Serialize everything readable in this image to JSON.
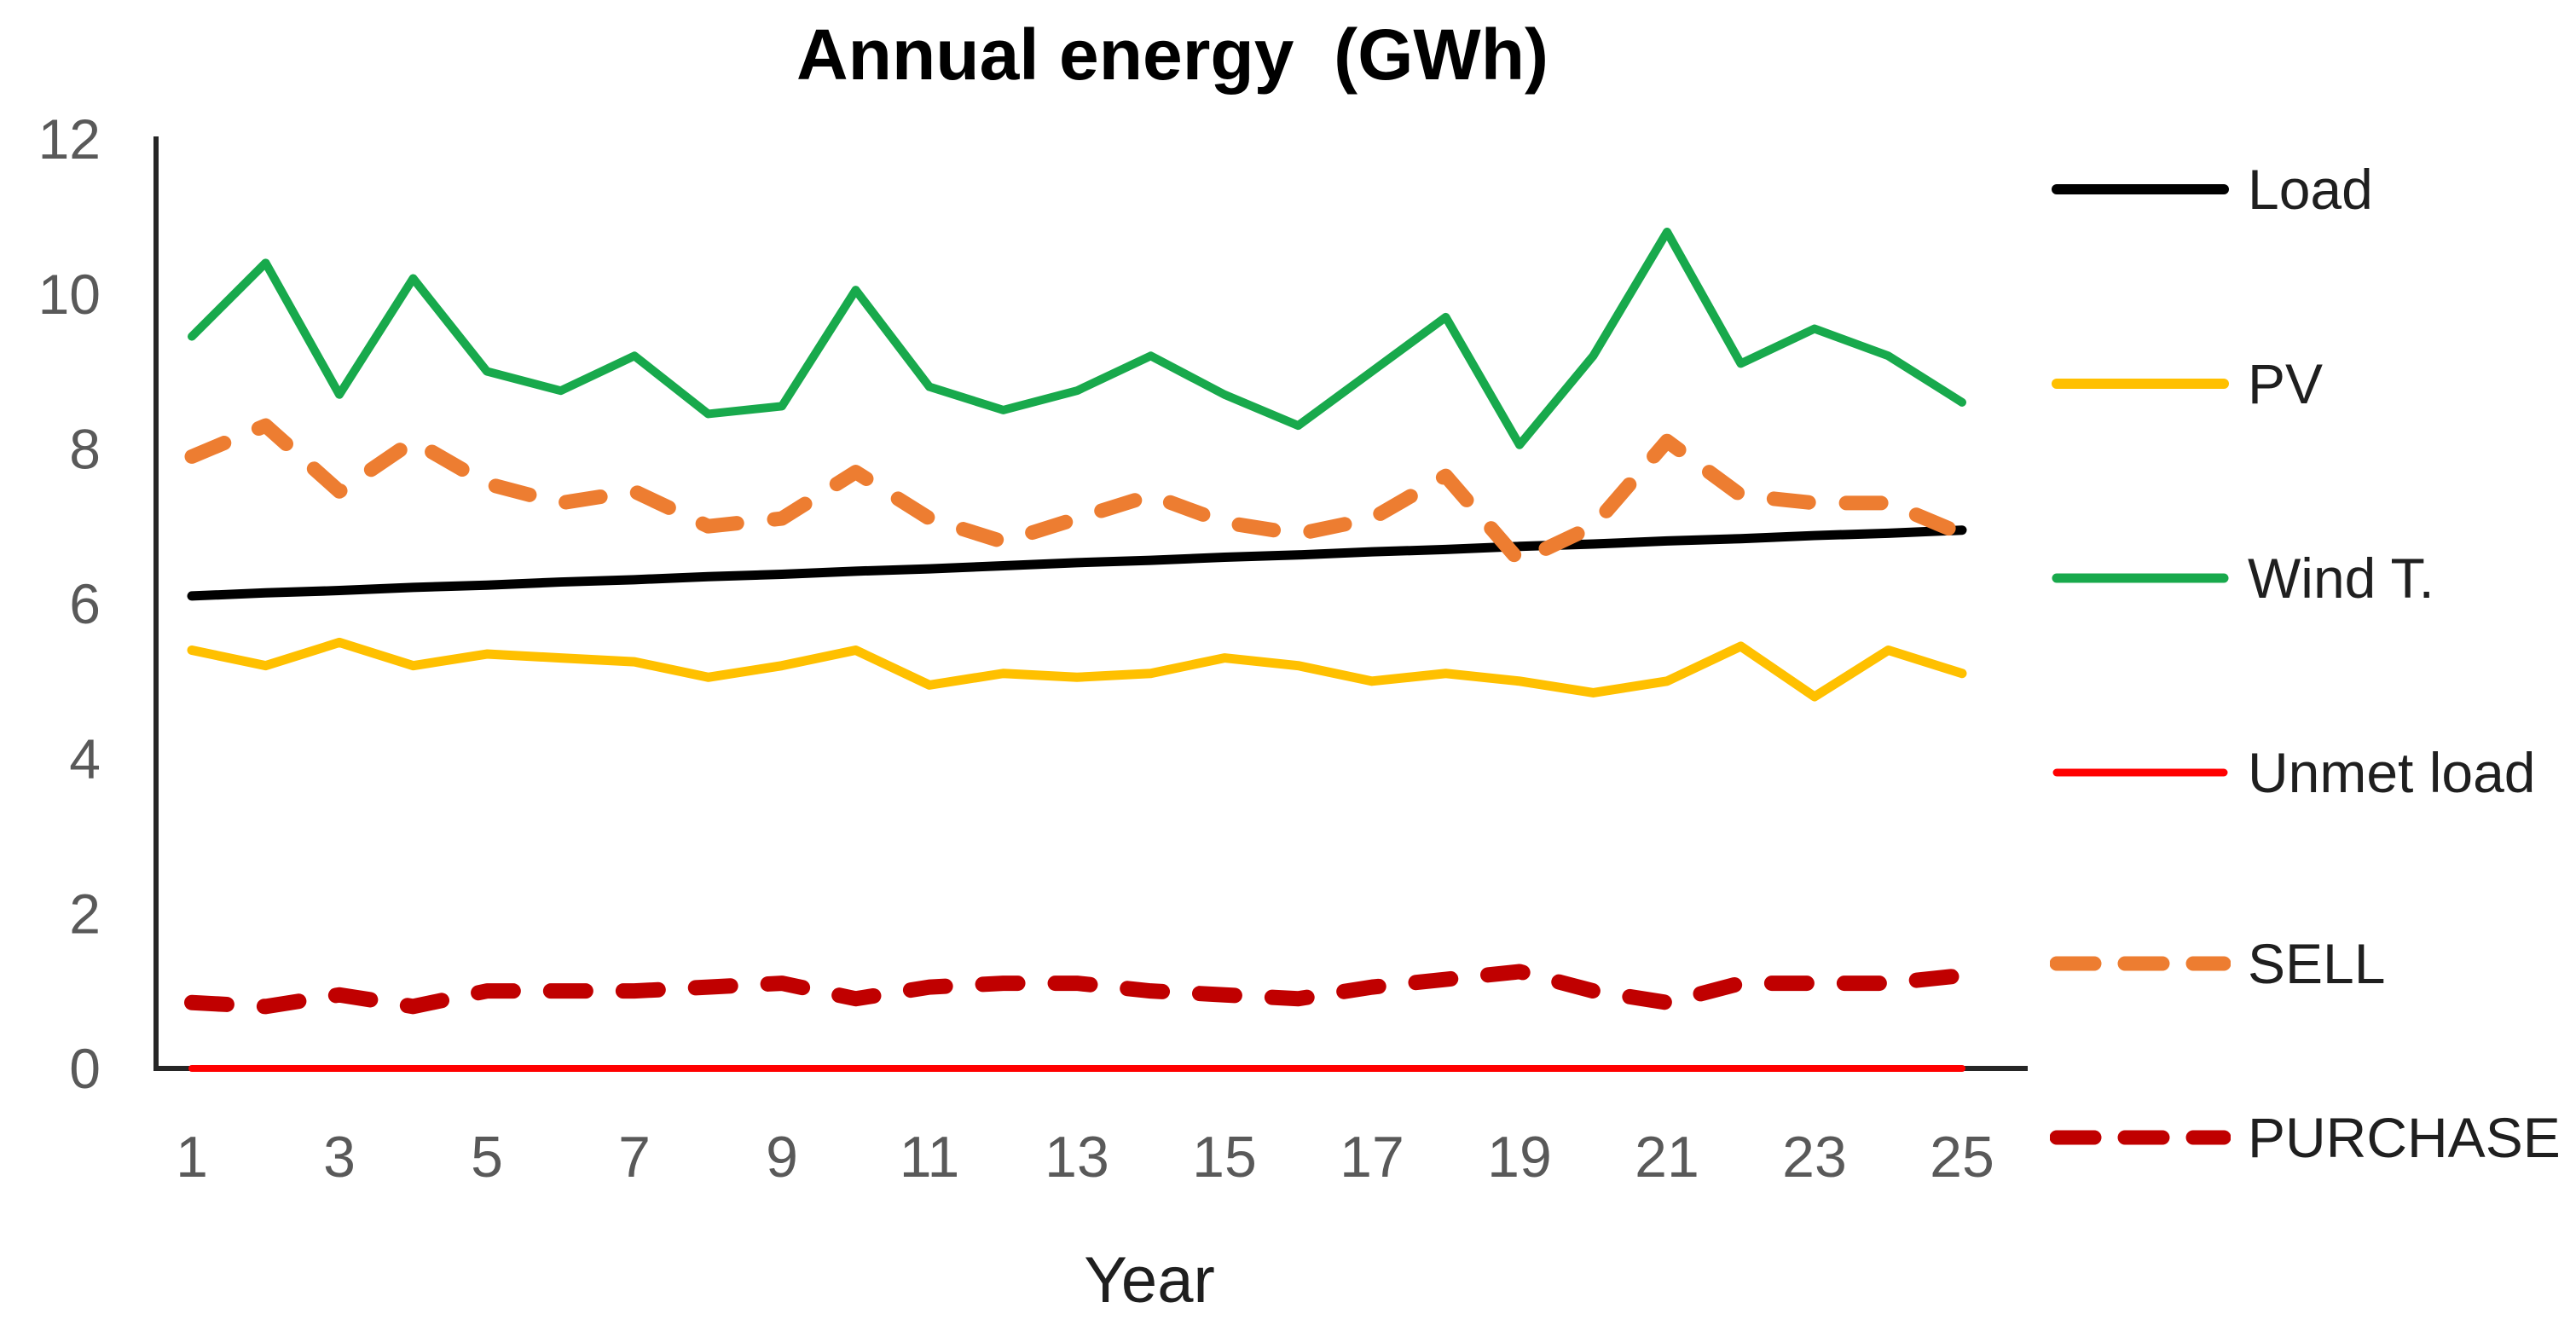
{
  "chart_data": {
    "type": "line",
    "title": "Annual energy  (GWh)",
    "xlabel": "Year",
    "ylabel": "",
    "x": [
      1,
      2,
      3,
      4,
      5,
      6,
      7,
      8,
      9,
      10,
      11,
      12,
      13,
      14,
      15,
      16,
      17,
      18,
      19,
      20,
      21,
      22,
      23,
      24,
      25
    ],
    "x_tick_labels": [
      "1",
      "3",
      "5",
      "7",
      "9",
      "11",
      "13",
      "15",
      "17",
      "19",
      "21",
      "23",
      "25"
    ],
    "y_ticks": [
      "0",
      "2",
      "4",
      "6",
      "8",
      "10",
      "12"
    ],
    "ylim": [
      0,
      12
    ],
    "xlim": [
      1,
      25
    ],
    "grid": false,
    "legend_position": "right",
    "axis_color": "#262626",
    "tick_label_color": "#595959",
    "text_color": "#1f1f1f",
    "series": [
      {
        "name": "Load",
        "color": "#000000",
        "style": "solid",
        "width": 11,
        "values": [
          6.1,
          6.14,
          6.17,
          6.21,
          6.24,
          6.28,
          6.31,
          6.35,
          6.38,
          6.42,
          6.45,
          6.49,
          6.53,
          6.56,
          6.6,
          6.63,
          6.67,
          6.7,
          6.74,
          6.77,
          6.81,
          6.84,
          6.88,
          6.91,
          6.95
        ]
      },
      {
        "name": "PV",
        "color": "#FFC000",
        "style": "solid",
        "width": 11,
        "values": [
          5.4,
          5.2,
          5.5,
          5.2,
          5.35,
          5.3,
          5.25,
          5.05,
          5.2,
          5.4,
          4.95,
          5.1,
          5.05,
          5.1,
          5.3,
          5.2,
          5.0,
          5.1,
          5.0,
          4.85,
          5.0,
          5.45,
          4.8,
          5.4,
          5.1
        ]
      },
      {
        "name": "Wind T.",
        "color": "#18A94C",
        "style": "solid",
        "width": 10,
        "values": [
          9.45,
          10.4,
          8.7,
          10.2,
          9.0,
          8.75,
          9.2,
          8.45,
          8.55,
          10.05,
          8.8,
          8.5,
          8.75,
          9.2,
          8.7,
          8.3,
          9.0,
          9.7,
          8.05,
          9.2,
          10.8,
          9.1,
          9.55,
          9.2,
          8.6
        ]
      },
      {
        "name": "Unmet load",
        "color": "#FF0000",
        "style": "solid",
        "width": 8,
        "values": [
          0,
          0,
          0,
          0,
          0,
          0,
          0,
          0,
          0,
          0,
          0,
          0,
          0,
          0,
          0,
          0,
          0,
          0,
          0,
          0,
          0,
          0,
          0,
          0,
          0
        ]
      },
      {
        "name": "SELL",
        "color": "#ED7D31",
        "style": "dashed",
        "width": 17,
        "values": [
          7.9,
          8.3,
          7.45,
          8.1,
          7.55,
          7.3,
          7.45,
          7.0,
          7.1,
          7.7,
          7.1,
          6.8,
          7.1,
          7.4,
          7.05,
          6.9,
          7.1,
          7.65,
          6.55,
          7.0,
          8.1,
          7.4,
          7.3,
          7.3,
          6.9
        ]
      },
      {
        "name": "PURCHASE",
        "color": "#C00000",
        "style": "dashed",
        "width": 18,
        "values": [
          0.85,
          0.8,
          0.95,
          0.8,
          1.0,
          1.0,
          1.0,
          1.05,
          1.1,
          0.9,
          1.05,
          1.1,
          1.1,
          1.0,
          0.95,
          0.9,
          1.05,
          1.15,
          1.25,
          1.0,
          0.85,
          1.1,
          1.1,
          1.1,
          1.2
        ]
      }
    ]
  }
}
